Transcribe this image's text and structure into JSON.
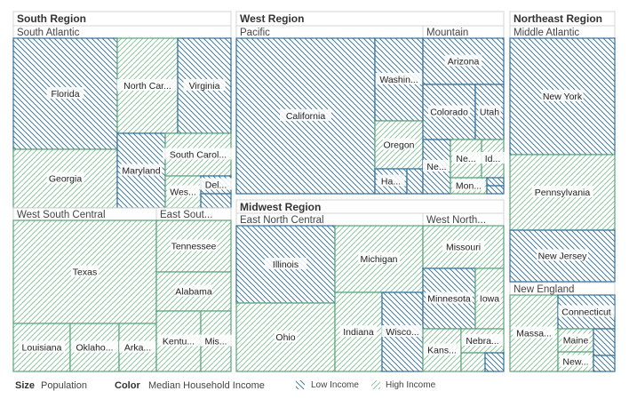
{
  "chart_data": {
    "type": "treemap",
    "size_measure": "Population",
    "color_measure": "Median Household Income",
    "legend": {
      "size_label": "Size",
      "size_value": "Population",
      "color_label": "Color",
      "color_value": "Median Household Income",
      "low_label": "Low Income",
      "high_label": "High Income",
      "low_color": "#2f6f9b",
      "high_color": "#5aa37a"
    },
    "regions": [
      {
        "name": "South Region",
        "divisions": [
          {
            "name": "South Atlantic",
            "states": [
              {
                "label": "Florida",
                "income": "low"
              },
              {
                "label": "Georgia",
                "income": "high"
              },
              {
                "label": "North Car...",
                "income": "high"
              },
              {
                "label": "Virginia",
                "income": "low"
              },
              {
                "label": "Maryland",
                "income": "low"
              },
              {
                "label": "South Carol...",
                "income": "high"
              },
              {
                "label": "Wes...",
                "income": "high"
              },
              {
                "label": "Del...",
                "income": "low"
              },
              {
                "label": "",
                "income": "low"
              }
            ]
          },
          {
            "name": "West South Central",
            "states": [
              {
                "label": "Texas",
                "income": "high"
              },
              {
                "label": "Louisiana",
                "income": "high"
              },
              {
                "label": "Oklaho...",
                "income": "high"
              },
              {
                "label": "Arka...",
                "income": "high"
              }
            ]
          },
          {
            "name": "East Sout...",
            "states": [
              {
                "label": "Tennessee",
                "income": "high"
              },
              {
                "label": "Alabama",
                "income": "high"
              },
              {
                "label": "Kentu...",
                "income": "high"
              },
              {
                "label": "Mis...",
                "income": "high"
              }
            ]
          }
        ]
      },
      {
        "name": "West Region",
        "divisions": [
          {
            "name": "Pacific",
            "states": [
              {
                "label": "California",
                "income": "low"
              },
              {
                "label": "Washin...",
                "income": "low"
              },
              {
                "label": "Oregon",
                "income": "high"
              },
              {
                "label": "Ha...",
                "income": "low"
              },
              {
                "label": "",
                "income": "low"
              }
            ]
          },
          {
            "name": "Mountain",
            "states": [
              {
                "label": "Arizona",
                "income": "low"
              },
              {
                "label": "Colorado",
                "income": "low"
              },
              {
                "label": "Utah",
                "income": "low"
              },
              {
                "label": "Ne...",
                "income": "low"
              },
              {
                "label": "Ne...",
                "income": "high"
              },
              {
                "label": "Id...",
                "income": "high"
              },
              {
                "label": "Mon...",
                "income": "high"
              },
              {
                "label": "",
                "income": "low"
              },
              {
                "label": "",
                "income": "low"
              }
            ]
          }
        ]
      },
      {
        "name": "Midwest Region",
        "divisions": [
          {
            "name": "East North Central",
            "states": [
              {
                "label": "Illinois",
                "income": "low"
              },
              {
                "label": "Ohio",
                "income": "high"
              },
              {
                "label": "Michigan",
                "income": "high"
              },
              {
                "label": "Indiana",
                "income": "high"
              },
              {
                "label": "Wisco...",
                "income": "low"
              }
            ]
          },
          {
            "name": "West North...",
            "states": [
              {
                "label": "Missouri",
                "income": "high"
              },
              {
                "label": "Minnesota",
                "income": "low"
              },
              {
                "label": "Iowa",
                "income": "high"
              },
              {
                "label": "Kans...",
                "income": "high"
              },
              {
                "label": "Nebra...",
                "income": "high"
              },
              {
                "label": "",
                "income": "high"
              },
              {
                "label": "",
                "income": "low"
              }
            ]
          }
        ]
      },
      {
        "name": "Northeast Region",
        "divisions": [
          {
            "name": "Middle Atlantic",
            "states": [
              {
                "label": "New York",
                "income": "low"
              },
              {
                "label": "Pennsylvania",
                "income": "high"
              },
              {
                "label": "New Jersey",
                "income": "low"
              }
            ]
          },
          {
            "name": "New England",
            "states": [
              {
                "label": "Massa...",
                "income": "high"
              },
              {
                "label": "Connecticut",
                "income": "low"
              },
              {
                "label": "Maine",
                "income": "high"
              },
              {
                "label": "New...",
                "income": "high"
              },
              {
                "label": "",
                "income": "low"
              },
              {
                "label": "",
                "income": "low"
              }
            ]
          }
        ]
      }
    ]
  }
}
